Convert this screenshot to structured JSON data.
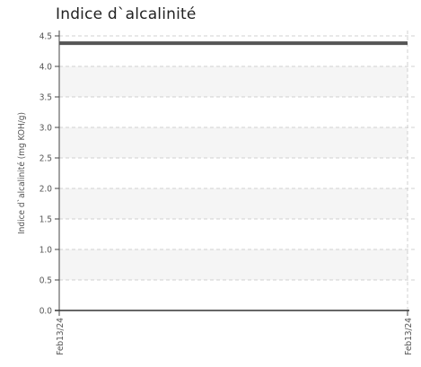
{
  "chart_data": {
    "type": "line",
    "title": "Indice d`alcalinité",
    "xlabel": "",
    "ylabel": "Indice d`alcalinité (mg KOH/g)",
    "ylim": [
      0,
      4.5
    ],
    "yticks": [
      "0.0",
      "0.5",
      "1.0",
      "1.5",
      "2.0",
      "2.5",
      "3.0",
      "3.5",
      "4.0",
      "4.5"
    ],
    "xticks": [
      "Feb13/24",
      "Feb13/24"
    ],
    "grid": true,
    "series": [
      {
        "x": [
          "Feb13/24",
          "Feb13/24"
        ],
        "values": [
          4.38,
          4.38
        ],
        "color": "#555555"
      }
    ]
  }
}
